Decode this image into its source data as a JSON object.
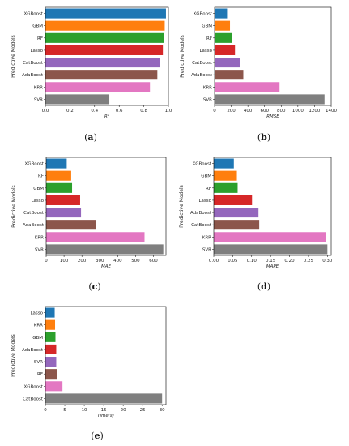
{
  "colors": [
    "#1f77b4",
    "#ff7f0e",
    "#2ca02c",
    "#d62728",
    "#9467bd",
    "#8c564b",
    "#e377c2",
    "#7f7f7f"
  ],
  "chart_data": [
    {
      "type": "bar",
      "orientation": "horizontal",
      "caption": "a",
      "categories": [
        "XGBoost",
        "GBM",
        "RF",
        "Lasso",
        "CatBoost",
        "AdaBoost",
        "KRR",
        "SVR"
      ],
      "values": [
        0.98,
        0.97,
        0.965,
        0.955,
        0.93,
        0.91,
        0.85,
        0.52
      ],
      "xlabel": "R²",
      "ylabel": "Predictive Models",
      "xlim": [
        0,
        1.0
      ],
      "xticks": [
        "0.0",
        "0.2",
        "0.4",
        "0.6",
        "0.8",
        "1.0"
      ]
    },
    {
      "type": "bar",
      "orientation": "horizontal",
      "caption": "b",
      "categories": [
        "XGBoost",
        "GBM",
        "RF",
        "Lasso",
        "CatBoost",
        "AdaBoost",
        "KRR",
        "SVR"
      ],
      "values": [
        150,
        185,
        205,
        245,
        305,
        345,
        780,
        1320
      ],
      "xlabel": "RMSE",
      "ylabel": "Predictive Models",
      "xlim": [
        0,
        1400
      ],
      "xticks": [
        "0",
        "200",
        "400",
        "600",
        "800",
        "1000",
        "1200",
        "1400"
      ]
    },
    {
      "type": "bar",
      "orientation": "horizontal",
      "caption": "c",
      "categories": [
        "XGBoost",
        "RF",
        "GBM",
        "Lasso",
        "CatBoost",
        "AdaBoost",
        "KRR",
        "SVR"
      ],
      "values": [
        115,
        140,
        145,
        190,
        195,
        280,
        550,
        655
      ],
      "xlabel": "MAE",
      "ylabel": "Predictive Models",
      "xlim": [
        0,
        670
      ],
      "xticks": [
        "0",
        "100",
        "200",
        "300",
        "400",
        "500",
        "600"
      ]
    },
    {
      "type": "bar",
      "orientation": "horizontal",
      "caption": "d",
      "categories": [
        "XGBoost",
        "GBM",
        "RF",
        "Lasso",
        "AdaBoost",
        "CatBoost",
        "KRR",
        "SVR"
      ],
      "values": [
        0.053,
        0.061,
        0.063,
        0.101,
        0.118,
        0.12,
        0.295,
        0.3
      ],
      "xlabel": "MAPE",
      "ylabel": "Predictive Models",
      "xlim": [
        0,
        0.31
      ],
      "xticks": [
        "0.00",
        "0.05",
        "0.10",
        "0.15",
        "0.20",
        "0.25",
        "0.30"
      ]
    },
    {
      "type": "bar",
      "orientation": "horizontal",
      "caption": "e",
      "categories": [
        "Lasso",
        "KRR",
        "GBM",
        "AdaBoost",
        "SVR",
        "RF",
        "XGBoost",
        "CatBoost"
      ],
      "values": [
        2.4,
        2.5,
        2.6,
        2.8,
        2.8,
        3.0,
        4.4,
        30.0
      ],
      "color_index": [
        0,
        1,
        2,
        3,
        4,
        5,
        6,
        7
      ],
      "xlabel": "Time(s)",
      "ylabel": "Predictive Models",
      "xlim": [
        0,
        31
      ],
      "xticks": [
        "0",
        "5",
        "10",
        "15",
        "20",
        "25",
        "30"
      ]
    }
  ]
}
